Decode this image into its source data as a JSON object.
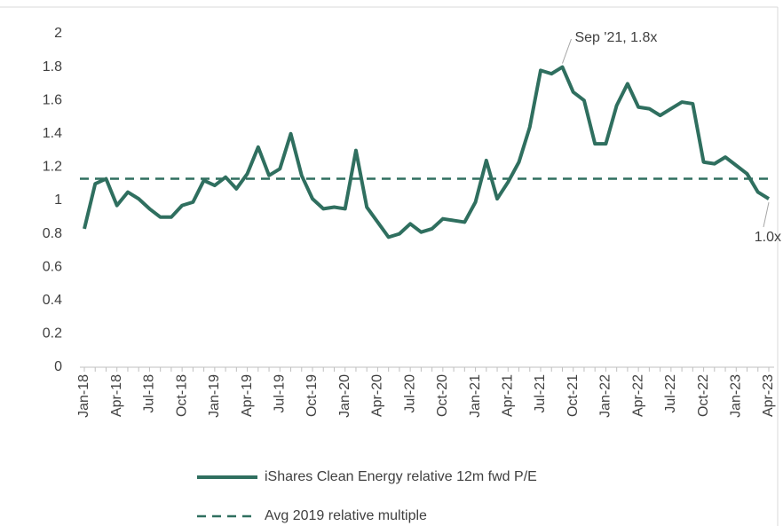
{
  "chart_data": {
    "type": "line",
    "categories": [
      "Jan-18",
      null,
      null,
      "Apr-18",
      null,
      null,
      "Jul-18",
      null,
      null,
      "Oct-18",
      null,
      null,
      "Jan-19",
      null,
      null,
      "Apr-19",
      null,
      null,
      "Jul-19",
      null,
      null,
      "Oct-19",
      null,
      null,
      "Jan-20",
      null,
      null,
      "Apr-20",
      null,
      null,
      "Jul-20",
      null,
      null,
      "Oct-20",
      null,
      null,
      "Jan-21",
      null,
      null,
      "Apr-21",
      null,
      null,
      "Jul-21",
      null,
      null,
      "Oct-21",
      null,
      null,
      "Jan-22",
      null,
      null,
      "Apr-22",
      null,
      null,
      "Jul-22",
      null,
      null,
      "Oct-22",
      null,
      null,
      "Jan-23",
      null,
      null,
      "Apr-23"
    ],
    "series": [
      {
        "name": "iShares Clean Energy relative 12m fwd P/E",
        "color": "#2f6f5f",
        "values": [
          0.83,
          1.1,
          1.13,
          0.97,
          1.05,
          1.01,
          0.95,
          0.9,
          0.9,
          0.97,
          0.99,
          1.12,
          1.09,
          1.14,
          1.07,
          1.16,
          1.32,
          1.15,
          1.19,
          1.4,
          1.15,
          1.01,
          0.95,
          0.96,
          0.95,
          1.3,
          0.96,
          0.87,
          0.78,
          0.8,
          0.86,
          0.81,
          0.83,
          0.89,
          0.88,
          0.87,
          0.99,
          1.24,
          1.01,
          1.11,
          1.23,
          1.44,
          1.78,
          1.76,
          1.8,
          1.65,
          1.6,
          1.34,
          1.34,
          1.57,
          1.7,
          1.56,
          1.55,
          1.51,
          1.55,
          1.59,
          1.58,
          1.23,
          1.22,
          1.26,
          1.21,
          1.16,
          1.05,
          1.01
        ]
      }
    ],
    "reference_line": {
      "name": "Avg 2019 relative multiple",
      "value": 1.13,
      "color": "#2f6f5f",
      "dashed": true
    },
    "annotations": [
      "Sep '21, 1.8x",
      "1.0x"
    ],
    "ylim": [
      0,
      2
    ],
    "yticks": [
      0,
      0.2,
      0.4,
      0.6,
      0.8,
      1,
      1.2,
      1.4,
      1.6,
      1.8,
      2
    ],
    "grid": false,
    "legend": "bottom"
  }
}
